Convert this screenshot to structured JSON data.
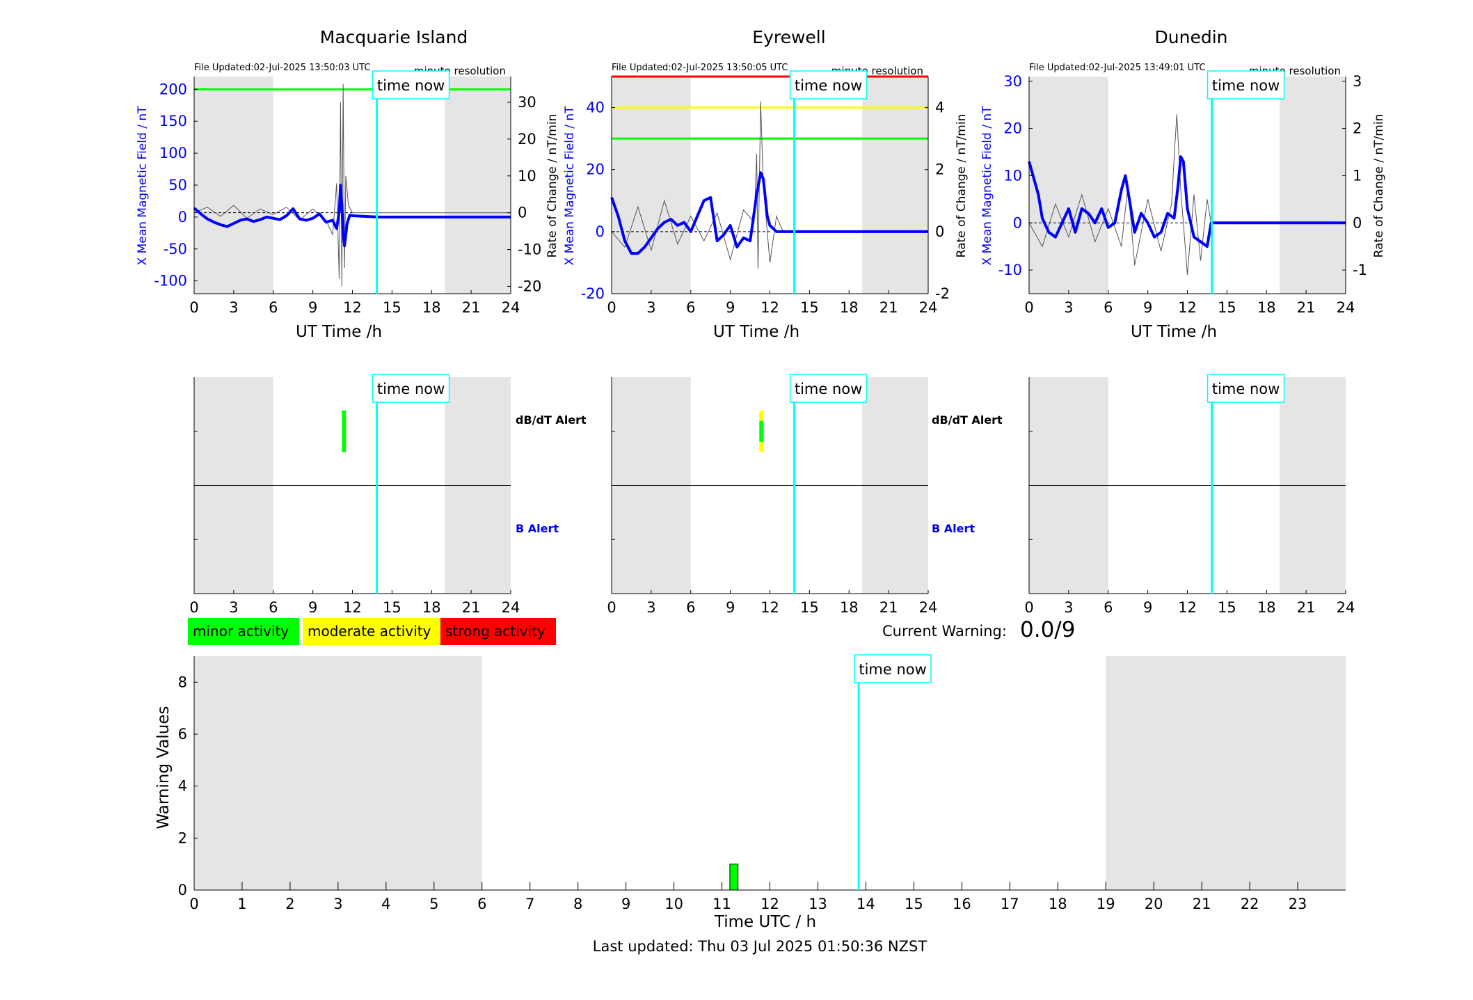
{
  "palette": {
    "field_line": "#0000ff",
    "rate_line": "#555555",
    "time_now": "#00ffff",
    "minor": "#00ff00",
    "moderate": "#ffff00",
    "strong": "#ff0000",
    "night_shade": "#e5e5e5"
  },
  "legend": {
    "minor": "minor activity",
    "moderate": "moderate activity",
    "strong": "strong activity"
  },
  "current_warning": {
    "label": "Current Warning:",
    "value": "0.0/9"
  },
  "footer": {
    "last_updated": "Last updated: Thu 03 Jul 2025 01:50:36 NZST"
  },
  "chart_data": [
    {
      "type": "line",
      "title": "Macquarie Island",
      "file_updated": "File Updated:02-Jul-2025 13:50:03 UTC",
      "resolution": "minute resolution",
      "time_now_label": "time now",
      "time_now": 13.85,
      "xlabel": "UT Time /h",
      "ylabel_left": "X Mean Magnetic Field / nT",
      "ylabel_right": "Rate of Change / nT/min",
      "xlim": [
        0,
        24
      ],
      "xticks": [
        0,
        3,
        6,
        9,
        12,
        15,
        18,
        21,
        24
      ],
      "ylim_left": [
        -120,
        220
      ],
      "yticks_left": [
        -100,
        -50,
        0,
        50,
        100,
        150,
        200
      ],
      "ylim_right": [
        -22,
        37
      ],
      "yticks_right": [
        -20,
        -10,
        0,
        10,
        20,
        30
      ],
      "night_shading": [
        [
          0,
          6
        ],
        [
          19,
          24
        ]
      ],
      "thresholds": [
        {
          "level": "minor",
          "value": 200
        }
      ],
      "field_series": {
        "x": [
          0,
          0.5,
          1,
          1.5,
          2,
          2.5,
          3,
          3.5,
          4,
          4.5,
          5,
          5.5,
          6,
          6.5,
          7,
          7.5,
          8,
          8.5,
          9,
          9.5,
          10,
          10.5,
          10.8,
          11,
          11.1,
          11.2,
          11.3,
          11.4,
          11.6,
          11.8,
          12,
          13,
          14,
          24
        ],
        "y": [
          14,
          5,
          -3,
          -8,
          -12,
          -15,
          -10,
          -5,
          -3,
          -7,
          -4,
          0,
          -2,
          -4,
          2,
          13,
          -3,
          -5,
          -2,
          5,
          -8,
          -5,
          -18,
          8,
          50,
          20,
          -25,
          -45,
          -10,
          3,
          2,
          1,
          0,
          0
        ]
      },
      "rate_series": {
        "x": [
          0,
          1,
          2,
          3,
          4,
          5,
          6,
          7,
          8,
          9,
          10,
          10.5,
          10.8,
          11,
          11.1,
          11.2,
          11.3,
          11.4,
          11.5,
          11.7,
          12,
          24
        ],
        "y": [
          0,
          1.5,
          -1,
          2,
          -1.5,
          1,
          -0.5,
          1.5,
          -2,
          1,
          -2,
          -6,
          8,
          -18,
          30,
          -20,
          35,
          -15,
          10,
          2,
          0,
          0
        ]
      }
    },
    {
      "type": "line",
      "title": "Eyrewell",
      "file_updated": "File Updated:02-Jul-2025 13:50:05 UTC",
      "resolution": "minute resolution",
      "time_now_label": "time now",
      "time_now": 13.85,
      "xlabel": "UT Time /h",
      "ylabel_left": "X Mean Magnetic Field / nT",
      "ylabel_right": "Rate of Change / nT/min",
      "xlim": [
        0,
        24
      ],
      "xticks": [
        0,
        3,
        6,
        9,
        12,
        15,
        18,
        21,
        24
      ],
      "ylim_left": [
        -20,
        50
      ],
      "yticks_left": [
        -20,
        0,
        20,
        40
      ],
      "ylim_right": [
        -2,
        5
      ],
      "yticks_right": [
        -2,
        0,
        2,
        4
      ],
      "night_shading": [
        [
          0,
          6
        ],
        [
          19,
          24
        ]
      ],
      "thresholds": [
        {
          "level": "strong",
          "value": 50
        },
        {
          "level": "moderate",
          "value": 40
        },
        {
          "level": "minor",
          "value": 30
        }
      ],
      "field_series": {
        "x": [
          0,
          0.5,
          1,
          1.5,
          2,
          2.5,
          3,
          3.5,
          4,
          4.5,
          5,
          5.5,
          6,
          6.5,
          7,
          7.5,
          8,
          8.5,
          9,
          9.5,
          10,
          10.5,
          11,
          11.3,
          11.5,
          11.8,
          12,
          12.5,
          13,
          24
        ],
        "y": [
          11,
          5,
          -3,
          -7,
          -7,
          -5,
          -2,
          1,
          3,
          4,
          2,
          3,
          0,
          5,
          10,
          11,
          -3,
          -1,
          2,
          -5,
          -2,
          -3,
          12,
          19,
          17,
          5,
          2,
          0,
          0,
          0
        ]
      },
      "rate_series": {
        "x": [
          0,
          1,
          2,
          3,
          4,
          5,
          6,
          7,
          8,
          9,
          10,
          10.8,
          11,
          11.1,
          11.3,
          11.5,
          12,
          12.5,
          13,
          24
        ],
        "y": [
          0,
          -0.5,
          0.8,
          -0.6,
          1,
          -0.4,
          0.5,
          -0.3,
          0.6,
          -0.9,
          0.7,
          0.3,
          2.5,
          -1.2,
          4.2,
          1.5,
          -1,
          0.5,
          0,
          0
        ]
      }
    },
    {
      "type": "line",
      "title": "Dunedin",
      "file_updated": "File Updated:02-Jul-2025 13:49:01 UTC",
      "resolution": "minute resolution",
      "time_now_label": "time now",
      "time_now": 13.85,
      "xlabel": "UT Time /h",
      "ylabel_left": "X Mean Magnetic Field / nT",
      "ylabel_right": "Rate of Change / nT/min",
      "xlim": [
        0,
        24
      ],
      "xticks": [
        0,
        3,
        6,
        9,
        12,
        15,
        18,
        21,
        24
      ],
      "ylim_left": [
        -15,
        31
      ],
      "yticks_left": [
        -10,
        0,
        10,
        20,
        30
      ],
      "ylim_right": [
        -1.5,
        3.1
      ],
      "yticks_right": [
        -1,
        0,
        1,
        2,
        3
      ],
      "night_shading": [
        [
          0,
          6
        ],
        [
          19,
          24
        ]
      ],
      "thresholds": [],
      "field_series": {
        "x": [
          0,
          0.3,
          0.7,
          1,
          1.5,
          2,
          2.5,
          3,
          3.5,
          4,
          4.5,
          5,
          5.5,
          6,
          6.5,
          7,
          7.3,
          7.6,
          8,
          8.5,
          9,
          9.5,
          10,
          10.5,
          11,
          11.3,
          11.5,
          11.7,
          12,
          12.5,
          13,
          13.5,
          13.8,
          24
        ],
        "y": [
          13,
          10,
          6,
          1,
          -2,
          -3,
          0,
          3,
          -2,
          3,
          2,
          0,
          3,
          -1,
          0,
          7,
          10,
          5,
          -2,
          2,
          0,
          -3,
          -2,
          2,
          1,
          8,
          14,
          13,
          3,
          -3,
          -4,
          -5,
          0,
          0
        ]
      },
      "rate_series": {
        "x": [
          0,
          1,
          2,
          3,
          4,
          5,
          6,
          7,
          7.5,
          8,
          9,
          10,
          10.8,
          11,
          11.2,
          11.5,
          12,
          12.5,
          13,
          13.5,
          13.8,
          24
        ],
        "y": [
          0,
          -0.5,
          0.4,
          -0.3,
          0.6,
          -0.4,
          0.3,
          -0.5,
          0.8,
          -0.9,
          0.5,
          -0.6,
          0.4,
          1.4,
          2.3,
          0.7,
          -1.1,
          0.6,
          -0.8,
          0.5,
          0,
          0
        ]
      }
    },
    {
      "type": "bar",
      "title": "",
      "time_now_label": "time now",
      "time_now": 13.85,
      "row_labels": {
        "upper": "dB/dT Alert",
        "lower": "B Alert"
      },
      "xlim": [
        0,
        24
      ],
      "xticks": [
        0,
        3,
        6,
        9,
        12,
        15,
        18,
        21,
        24
      ],
      "night_shading": [
        [
          0,
          6
        ],
        [
          19,
          24
        ]
      ],
      "alerts": [
        {
          "station": "Macquarie Island",
          "row": "dB/dT Alert",
          "start": 11.2,
          "end": 11.4,
          "levels": [
            "minor"
          ]
        },
        {
          "station": "Eyrewell",
          "row": "dB/dT Alert",
          "start": 11.2,
          "end": 11.4,
          "levels": [
            "moderate",
            "minor"
          ]
        }
      ]
    },
    {
      "type": "bar",
      "xlabel": "Time UTC / h",
      "ylabel": "Warning Values",
      "time_now_label": "time now",
      "time_now": 13.85,
      "xlim": [
        0,
        24
      ],
      "xticks": [
        0,
        1,
        2,
        3,
        4,
        5,
        6,
        7,
        8,
        9,
        10,
        11,
        12,
        13,
        14,
        15,
        16,
        17,
        18,
        19,
        20,
        21,
        22,
        23
      ],
      "ylim": [
        0,
        9
      ],
      "yticks": [
        0,
        2,
        4,
        6,
        8
      ],
      "night_shading": [
        [
          0,
          6
        ],
        [
          19,
          24
        ]
      ],
      "bars": [
        {
          "x": 11.25,
          "width": 0.17,
          "value": 1,
          "level": "minor"
        }
      ]
    }
  ]
}
